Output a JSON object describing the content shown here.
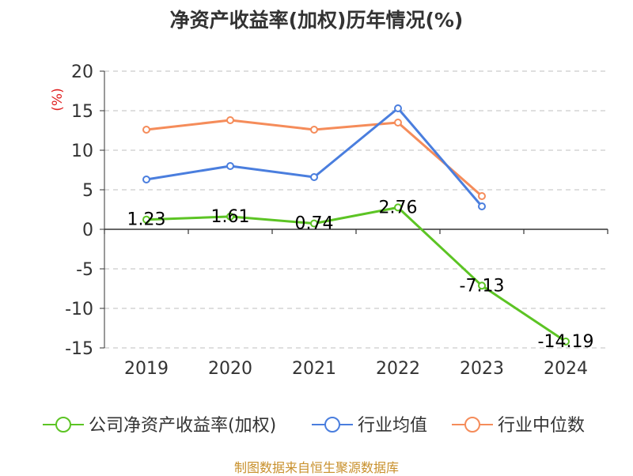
{
  "title": "净资产收益率(加权)历年情况(%)",
  "source": "制图数据来自恒生聚源数据库",
  "colors": {
    "grid": "#cccccc",
    "axis": "#333333",
    "unit": "#e02020",
    "source": "#c8902c"
  },
  "chart_data": {
    "type": "line",
    "title": "净资产收益率(加权)历年情况(%)",
    "ylabel": "(%)",
    "xlabel": "",
    "categories": [
      "2019",
      "2020",
      "2021",
      "2022",
      "2023",
      "2024"
    ],
    "ylim": [
      -15,
      20
    ],
    "yticks": [
      20,
      15,
      10,
      5,
      0,
      -5,
      -10,
      -15
    ],
    "grid": true,
    "legend": "bottom",
    "series": [
      {
        "name": "公司净资产收益率(加权)",
        "color": "#5cc424",
        "values": [
          1.23,
          1.61,
          0.74,
          2.76,
          -7.13,
          -14.19
        ],
        "labels": [
          "1.23",
          "1.61",
          "0.74",
          "2.76",
          "-7.13",
          "-14.19"
        ]
      },
      {
        "name": "行业均值",
        "color": "#4a7ede",
        "values": [
          6.3,
          8.0,
          6.6,
          15.3,
          2.9,
          null
        ],
        "labels": null
      },
      {
        "name": "行业中位数",
        "color": "#f58c5a",
        "values": [
          12.6,
          13.8,
          12.6,
          13.5,
          4.2,
          null
        ],
        "labels": null
      }
    ]
  }
}
